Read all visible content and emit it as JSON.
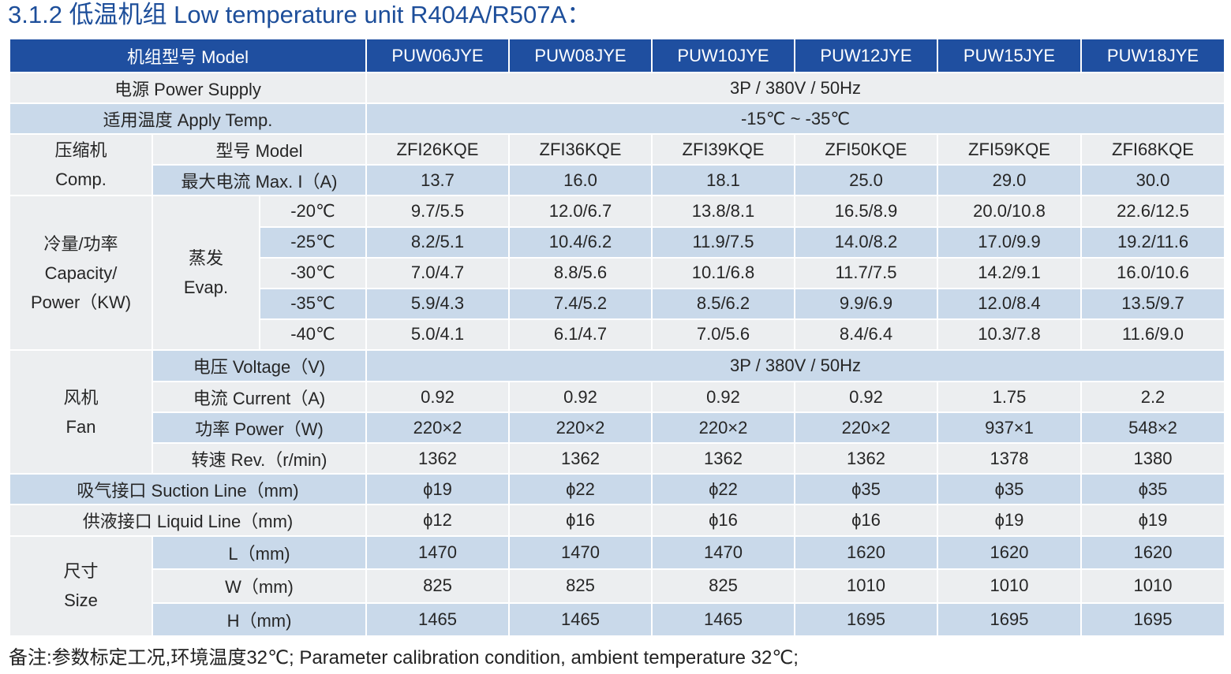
{
  "title": "3.1.2 低温机组 Low temperature unit  R404A/R507A：",
  "header": {
    "label": "机组型号 Model",
    "models": [
      "PUW06JYE",
      "PUW08JYE",
      "PUW10JYE",
      "PUW12JYE",
      "PUW15JYE",
      "PUW18JYE"
    ]
  },
  "power_supply": {
    "label": "电源 Power Supply",
    "value": "3P / 380V / 50Hz"
  },
  "apply_temp": {
    "label": "适用温度 Apply Temp.",
    "value": "-15℃ ~ -35℃"
  },
  "compressor": {
    "group_cn": "压缩机",
    "group_en": "Comp.",
    "model_label": "型号 Model",
    "models": [
      "ZFI26KQE",
      "ZFI36KQE",
      "ZFI39KQE",
      "ZFI50KQE",
      "ZFI59KQE",
      "ZFI68KQE"
    ],
    "max_i_label": "最大电流 Max. I（A)",
    "max_i": [
      "13.7",
      "16.0",
      "18.1",
      "25.0",
      "29.0",
      "30.0"
    ]
  },
  "capacity": {
    "group_l1": "冷量/功率",
    "group_l2": "Capacity/",
    "group_l3": "Power（KW)",
    "evap_cn": "蒸发",
    "evap_en": "Evap.",
    "rows": [
      {
        "temp": "-20℃",
        "values": [
          "9.7/5.5",
          "12.0/6.7",
          "13.8/8.1",
          "16.5/8.9",
          "20.0/10.8",
          "22.6/12.5"
        ]
      },
      {
        "temp": "-25℃",
        "values": [
          "8.2/5.1",
          "10.4/6.2",
          "11.9/7.5",
          "14.0/8.2",
          "17.0/9.9",
          "19.2/11.6"
        ]
      },
      {
        "temp": "-30℃",
        "values": [
          "7.0/4.7",
          "8.8/5.6",
          "10.1/6.8",
          "11.7/7.5",
          "14.2/9.1",
          "16.0/10.6"
        ]
      },
      {
        "temp": "-35℃",
        "values": [
          "5.9/4.3",
          "7.4/5.2",
          "8.5/6.2",
          "9.9/6.9",
          "12.0/8.4",
          "13.5/9.7"
        ]
      },
      {
        "temp": "-40℃",
        "values": [
          "5.0/4.1",
          "6.1/4.7",
          "7.0/5.6",
          "8.4/6.4",
          "10.3/7.8",
          "11.6/9.0"
        ]
      }
    ]
  },
  "fan": {
    "group_cn": "风机",
    "group_en": "Fan",
    "voltage_label": "电压 Voltage（V)",
    "voltage_value": "3P / 380V / 50Hz",
    "current_label": "电流 Current（A)",
    "current": [
      "0.92",
      "0.92",
      "0.92",
      "0.92",
      "1.75",
      "2.2"
    ],
    "power_label": "功率 Power（W)",
    "power": [
      "220×2",
      "220×2",
      "220×2",
      "220×2",
      "937×1",
      "548×2"
    ],
    "rev_label": "转速 Rev.（r/min)",
    "rev": [
      "1362",
      "1362",
      "1362",
      "1362",
      "1378",
      "1380"
    ]
  },
  "suction": {
    "label": "吸气接口 Suction Line（mm)",
    "values": [
      "ϕ19",
      "ϕ22",
      "ϕ22",
      "ϕ35",
      "ϕ35",
      "ϕ35"
    ]
  },
  "liquid": {
    "label": "供液接口 Liquid Line（mm)",
    "values": [
      "ϕ12",
      "ϕ16",
      "ϕ16",
      "ϕ16",
      "ϕ19",
      "ϕ19"
    ]
  },
  "size": {
    "group_cn": "尺寸",
    "group_en": "Size",
    "rows": [
      {
        "label": "L（mm)",
        "values": [
          "1470",
          "1470",
          "1470",
          "1620",
          "1620",
          "1620"
        ]
      },
      {
        "label": "W（mm)",
        "values": [
          "825",
          "825",
          "825",
          "1010",
          "1010",
          "1010"
        ]
      },
      {
        "label": "H（mm)",
        "values": [
          "1465",
          "1465",
          "1465",
          "1695",
          "1695",
          "1695"
        ]
      }
    ]
  },
  "note": "备注:参数标定工况,环境温度32℃; Parameter calibration condition, ambient temperature 32℃;",
  "colors": {
    "header_bg": "#1f4fa0",
    "title": "#1d4e9a",
    "band_blue": "#c9d9ea",
    "band_gray": "#eceef0"
  }
}
